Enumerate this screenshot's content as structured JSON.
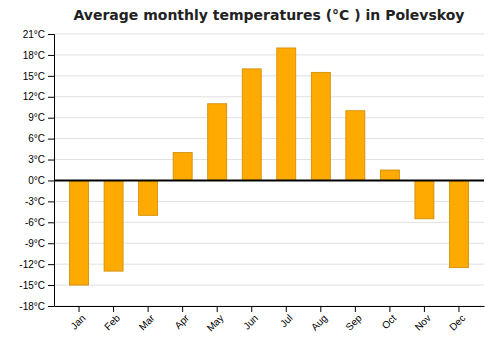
{
  "chart_data": {
    "type": "bar",
    "title": "Average monthly temperatures (°C ) in Polevskoy",
    "categories": [
      "Jan",
      "Feb",
      "Mar",
      "Apr",
      "May",
      "Jun",
      "Jul",
      "Aug",
      "Sep",
      "Oct",
      "Nov",
      "Dec"
    ],
    "values": [
      -15,
      -13,
      -5,
      4,
      11,
      16,
      19,
      15.5,
      10,
      1.5,
      -5.5,
      -12.5
    ],
    "color": "#FFAA00",
    "ylim": [
      -18,
      21
    ],
    "yticks": [
      {
        "value": -18,
        "label": "-18°C"
      },
      {
        "value": -15,
        "label": "-15°C"
      },
      {
        "value": -12,
        "label": "-12°C"
      },
      {
        "value": -9,
        "label": "-9°C"
      },
      {
        "value": -6,
        "label": "-6°C"
      },
      {
        "value": -3,
        "label": "-3°C"
      },
      {
        "value": 0,
        "label": "0°C"
      },
      {
        "value": 3,
        "label": "3°C"
      },
      {
        "value": 6,
        "label": "6°C"
      },
      {
        "value": 9,
        "label": "9°C"
      },
      {
        "value": 12,
        "label": "12°C"
      },
      {
        "value": 15,
        "label": "15°C"
      },
      {
        "value": 18,
        "label": "18°C"
      },
      {
        "value": 21,
        "label": "21°C"
      }
    ],
    "grid": true
  }
}
